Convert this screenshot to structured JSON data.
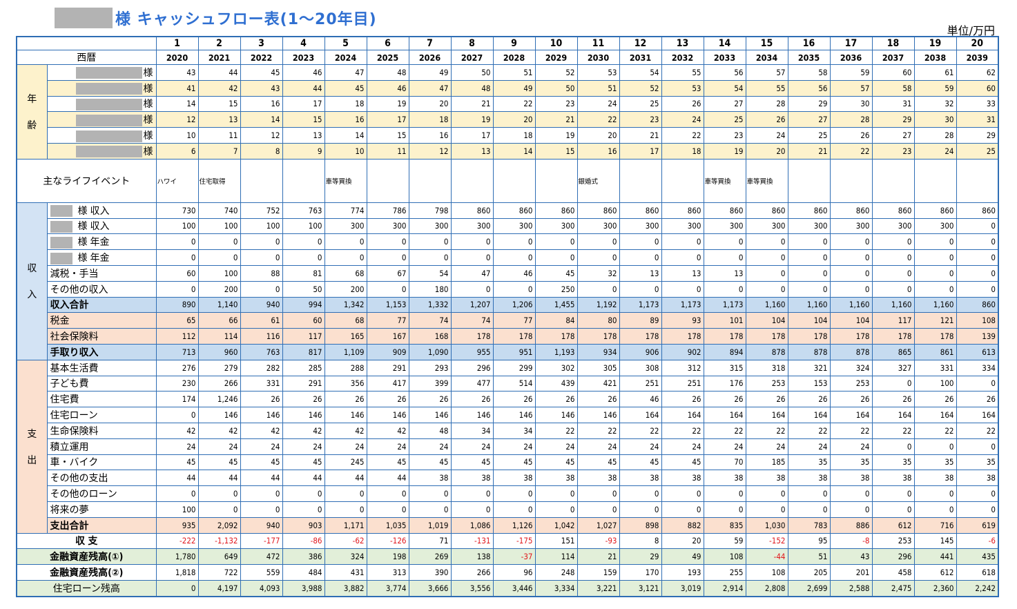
{
  "title": {
    "text": "様 キャッシュフロー表(1～20年目)"
  },
  "unit": "単位/万円",
  "header": {
    "years_label": "西暦"
  },
  "columns": [
    {
      "n": "1",
      "y": "2020"
    },
    {
      "n": "2",
      "y": "2021"
    },
    {
      "n": "3",
      "y": "2022"
    },
    {
      "n": "4",
      "y": "2023"
    },
    {
      "n": "5",
      "y": "2024"
    },
    {
      "n": "6",
      "y": "2025"
    },
    {
      "n": "7",
      "y": "2026"
    },
    {
      "n": "8",
      "y": "2027"
    },
    {
      "n": "9",
      "y": "2028"
    },
    {
      "n": "10",
      "y": "2029"
    },
    {
      "n": "11",
      "y": "2030"
    },
    {
      "n": "12",
      "y": "2031"
    },
    {
      "n": "13",
      "y": "2032"
    },
    {
      "n": "14",
      "y": "2033"
    },
    {
      "n": "15",
      "y": "2034"
    },
    {
      "n": "16",
      "y": "2035"
    },
    {
      "n": "17",
      "y": "2036"
    },
    {
      "n": "18",
      "y": "2037"
    },
    {
      "n": "19",
      "y": "2038"
    },
    {
      "n": "20",
      "y": "2039"
    }
  ],
  "age": {
    "category": "年齢",
    "cat_chars": [
      "年",
      "齢"
    ],
    "rows": [
      {
        "label": "様",
        "bg": "w",
        "values": [
          "43",
          "44",
          "45",
          "46",
          "47",
          "48",
          "49",
          "50",
          "51",
          "52",
          "53",
          "54",
          "55",
          "56",
          "57",
          "58",
          "59",
          "60",
          "61",
          "62"
        ]
      },
      {
        "label": "様",
        "bg": "y",
        "values": [
          "41",
          "42",
          "43",
          "44",
          "45",
          "46",
          "47",
          "48",
          "49",
          "50",
          "51",
          "52",
          "53",
          "54",
          "55",
          "56",
          "57",
          "58",
          "59",
          "60"
        ]
      },
      {
        "label": "様",
        "bg": "w",
        "values": [
          "14",
          "15",
          "16",
          "17",
          "18",
          "19",
          "20",
          "21",
          "22",
          "23",
          "24",
          "25",
          "26",
          "27",
          "28",
          "29",
          "30",
          "31",
          "32",
          "33"
        ]
      },
      {
        "label": "様",
        "bg": "y",
        "values": [
          "12",
          "13",
          "14",
          "15",
          "16",
          "17",
          "18",
          "19",
          "20",
          "21",
          "22",
          "23",
          "24",
          "25",
          "26",
          "27",
          "28",
          "29",
          "30",
          "31"
        ]
      },
      {
        "label": "様",
        "bg": "w",
        "values": [
          "10",
          "11",
          "12",
          "13",
          "14",
          "15",
          "16",
          "17",
          "18",
          "19",
          "20",
          "21",
          "22",
          "23",
          "24",
          "25",
          "26",
          "27",
          "28",
          "29"
        ]
      },
      {
        "label": "様",
        "bg": "y",
        "values": [
          "6",
          "7",
          "8",
          "9",
          "10",
          "11",
          "12",
          "13",
          "14",
          "15",
          "16",
          "17",
          "18",
          "19",
          "20",
          "21",
          "22",
          "23",
          "24",
          "25"
        ]
      }
    ]
  },
  "events": {
    "label": "主なライフイベント",
    "values": [
      "ハワイ",
      "住宅取得",
      "",
      "",
      "車等買換",
      "",
      "",
      "",
      "",
      "",
      "銀婚式",
      "",
      "",
      "車等買換",
      "車等買換",
      "",
      "",
      "",
      "",
      ""
    ]
  },
  "income": {
    "category": "収入",
    "cat_chars": [
      "収",
      "入"
    ],
    "rows": [
      {
        "label": "様 収入",
        "redact": "s",
        "values": [
          "730",
          "740",
          "752",
          "763",
          "774",
          "786",
          "798",
          "860",
          "860",
          "860",
          "860",
          "860",
          "860",
          "860",
          "860",
          "860",
          "860",
          "860",
          "860",
          "860"
        ]
      },
      {
        "label": "様 収入",
        "redact": "s",
        "values": [
          "100",
          "100",
          "100",
          "100",
          "300",
          "300",
          "300",
          "300",
          "300",
          "300",
          "300",
          "300",
          "300",
          "300",
          "300",
          "300",
          "300",
          "300",
          "300",
          "0"
        ]
      },
      {
        "label": "様 年金",
        "redact": "s",
        "values": [
          "0",
          "0",
          "0",
          "0",
          "0",
          "0",
          "0",
          "0",
          "0",
          "0",
          "0",
          "0",
          "0",
          "0",
          "0",
          "0",
          "0",
          "0",
          "0",
          "0"
        ]
      },
      {
        "label": "様 年金",
        "redact": "s",
        "values": [
          "0",
          "0",
          "0",
          "0",
          "0",
          "0",
          "0",
          "0",
          "0",
          "0",
          "0",
          "0",
          "0",
          "0",
          "0",
          "0",
          "0",
          "0",
          "0",
          "0"
        ]
      },
      {
        "label": "減税・手当",
        "values": [
          "60",
          "100",
          "88",
          "81",
          "68",
          "67",
          "54",
          "47",
          "46",
          "45",
          "32",
          "13",
          "13",
          "13",
          "0",
          "0",
          "0",
          "0",
          "0",
          "0"
        ]
      },
      {
        "label": "その他の収入",
        "values": [
          "0",
          "200",
          "0",
          "50",
          "200",
          "0",
          "180",
          "0",
          "0",
          "250",
          "0",
          "0",
          "0",
          "0",
          "0",
          "0",
          "0",
          "0",
          "0",
          "0"
        ]
      },
      {
        "label": "収入合計",
        "bold": true,
        "bg": "b",
        "values": [
          "890",
          "1,140",
          "940",
          "994",
          "1,342",
          "1,153",
          "1,332",
          "1,207",
          "1,206",
          "1,455",
          "1,192",
          "1,173",
          "1,173",
          "1,173",
          "1,160",
          "1,160",
          "1,160",
          "1,160",
          "1,160",
          "860"
        ]
      },
      {
        "label": "税金",
        "bg": "o",
        "values": [
          "65",
          "66",
          "61",
          "60",
          "68",
          "77",
          "74",
          "74",
          "77",
          "84",
          "80",
          "89",
          "93",
          "101",
          "104",
          "104",
          "104",
          "117",
          "121",
          "108"
        ]
      },
      {
        "label": "社会保険料",
        "bg": "o",
        "values": [
          "112",
          "114",
          "116",
          "117",
          "165",
          "167",
          "168",
          "178",
          "178",
          "178",
          "178",
          "178",
          "178",
          "178",
          "178",
          "178",
          "178",
          "178",
          "178",
          "139"
        ]
      },
      {
        "label": "手取り収入",
        "bold": true,
        "bg": "b",
        "values": [
          "713",
          "960",
          "763",
          "817",
          "1,109",
          "909",
          "1,090",
          "955",
          "951",
          "1,193",
          "934",
          "906",
          "902",
          "894",
          "878",
          "878",
          "878",
          "865",
          "861",
          "613"
        ]
      }
    ]
  },
  "expense": {
    "category": "支出",
    "cat_chars": [
      "支",
      "出"
    ],
    "rows": [
      {
        "label": "基本生活費",
        "values": [
          "276",
          "279",
          "282",
          "285",
          "288",
          "291",
          "293",
          "296",
          "299",
          "302",
          "305",
          "308",
          "312",
          "315",
          "318",
          "321",
          "324",
          "327",
          "331",
          "334"
        ]
      },
      {
        "label": "子ども費",
        "values": [
          "230",
          "266",
          "331",
          "291",
          "356",
          "417",
          "399",
          "477",
          "514",
          "439",
          "421",
          "251",
          "251",
          "176",
          "253",
          "153",
          "253",
          "0",
          "100",
          "0"
        ]
      },
      {
        "label": "住宅費",
        "values": [
          "174",
          "1,246",
          "26",
          "26",
          "26",
          "26",
          "26",
          "26",
          "26",
          "26",
          "26",
          "46",
          "26",
          "26",
          "26",
          "26",
          "26",
          "26",
          "26",
          "26"
        ]
      },
      {
        "label": "住宅ローン",
        "values": [
          "0",
          "146",
          "146",
          "146",
          "146",
          "146",
          "146",
          "146",
          "146",
          "146",
          "146",
          "164",
          "164",
          "164",
          "164",
          "164",
          "164",
          "164",
          "164",
          "164"
        ]
      },
      {
        "label": "生命保険料",
        "values": [
          "42",
          "42",
          "42",
          "42",
          "42",
          "42",
          "48",
          "34",
          "34",
          "22",
          "22",
          "22",
          "22",
          "22",
          "22",
          "22",
          "22",
          "22",
          "22",
          "22"
        ]
      },
      {
        "label": "積立運用",
        "values": [
          "24",
          "24",
          "24",
          "24",
          "24",
          "24",
          "24",
          "24",
          "24",
          "24",
          "24",
          "24",
          "24",
          "24",
          "24",
          "24",
          "24",
          "0",
          "0",
          "0"
        ]
      },
      {
        "label": "車・バイク",
        "values": [
          "45",
          "45",
          "45",
          "45",
          "245",
          "45",
          "45",
          "45",
          "45",
          "45",
          "45",
          "45",
          "45",
          "70",
          "185",
          "35",
          "35",
          "35",
          "35",
          "35"
        ]
      },
      {
        "label": "その他の支出",
        "values": [
          "44",
          "44",
          "44",
          "44",
          "44",
          "44",
          "38",
          "38",
          "38",
          "38",
          "38",
          "38",
          "38",
          "38",
          "38",
          "38",
          "38",
          "38",
          "38",
          "38"
        ]
      },
      {
        "label": "その他のローン",
        "values": [
          "0",
          "0",
          "0",
          "0",
          "0",
          "0",
          "0",
          "0",
          "0",
          "0",
          "0",
          "0",
          "0",
          "0",
          "0",
          "0",
          "0",
          "0",
          "0",
          "0"
        ]
      },
      {
        "label": "将来の夢",
        "values": [
          "100",
          "0",
          "0",
          "0",
          "0",
          "0",
          "0",
          "0",
          "0",
          "0",
          "0",
          "0",
          "0",
          "0",
          "0",
          "0",
          "0",
          "0",
          "0",
          "0"
        ]
      },
      {
        "label": "支出合計",
        "bold": true,
        "bg": "o",
        "values": [
          "935",
          "2,092",
          "940",
          "903",
          "1,171",
          "1,035",
          "1,019",
          "1,086",
          "1,126",
          "1,042",
          "1,027",
          "898",
          "882",
          "835",
          "1,030",
          "783",
          "886",
          "612",
          "716",
          "619"
        ]
      }
    ]
  },
  "summary": [
    {
      "label": "収 支",
      "bold": true,
      "bg": "w",
      "values": [
        "-222",
        "-1,132",
        "-177",
        "-86",
        "-62",
        "-126",
        "71",
        "-131",
        "-175",
        "151",
        "-93",
        "8",
        "20",
        "59",
        "-152",
        "95",
        "-8",
        "253",
        "145",
        "-6"
      ]
    },
    {
      "label": "金融資産残高(①)",
      "bold": true,
      "bg": "g",
      "values": [
        "1,780",
        "649",
        "472",
        "386",
        "324",
        "198",
        "269",
        "138",
        "-37",
        "114",
        "21",
        "29",
        "49",
        "108",
        "-44",
        "51",
        "43",
        "296",
        "441",
        "435"
      ]
    },
    {
      "label": "金融資産残高(②)",
      "bold": true,
      "bg": "w",
      "values": [
        "1,818",
        "722",
        "559",
        "484",
        "431",
        "313",
        "390",
        "266",
        "96",
        "248",
        "159",
        "170",
        "193",
        "255",
        "108",
        "205",
        "201",
        "458",
        "612",
        "618"
      ]
    },
    {
      "label": "住宅ローン残高",
      "bold": false,
      "bg": "g",
      "values": [
        "0",
        "4,197",
        "4,093",
        "3,988",
        "3,882",
        "3,774",
        "3,666",
        "3,556",
        "3,446",
        "3,334",
        "3,221",
        "3,121",
        "3,019",
        "2,914",
        "2,808",
        "2,699",
        "2,588",
        "2,475",
        "2,360",
        "2,242"
      ]
    }
  ]
}
